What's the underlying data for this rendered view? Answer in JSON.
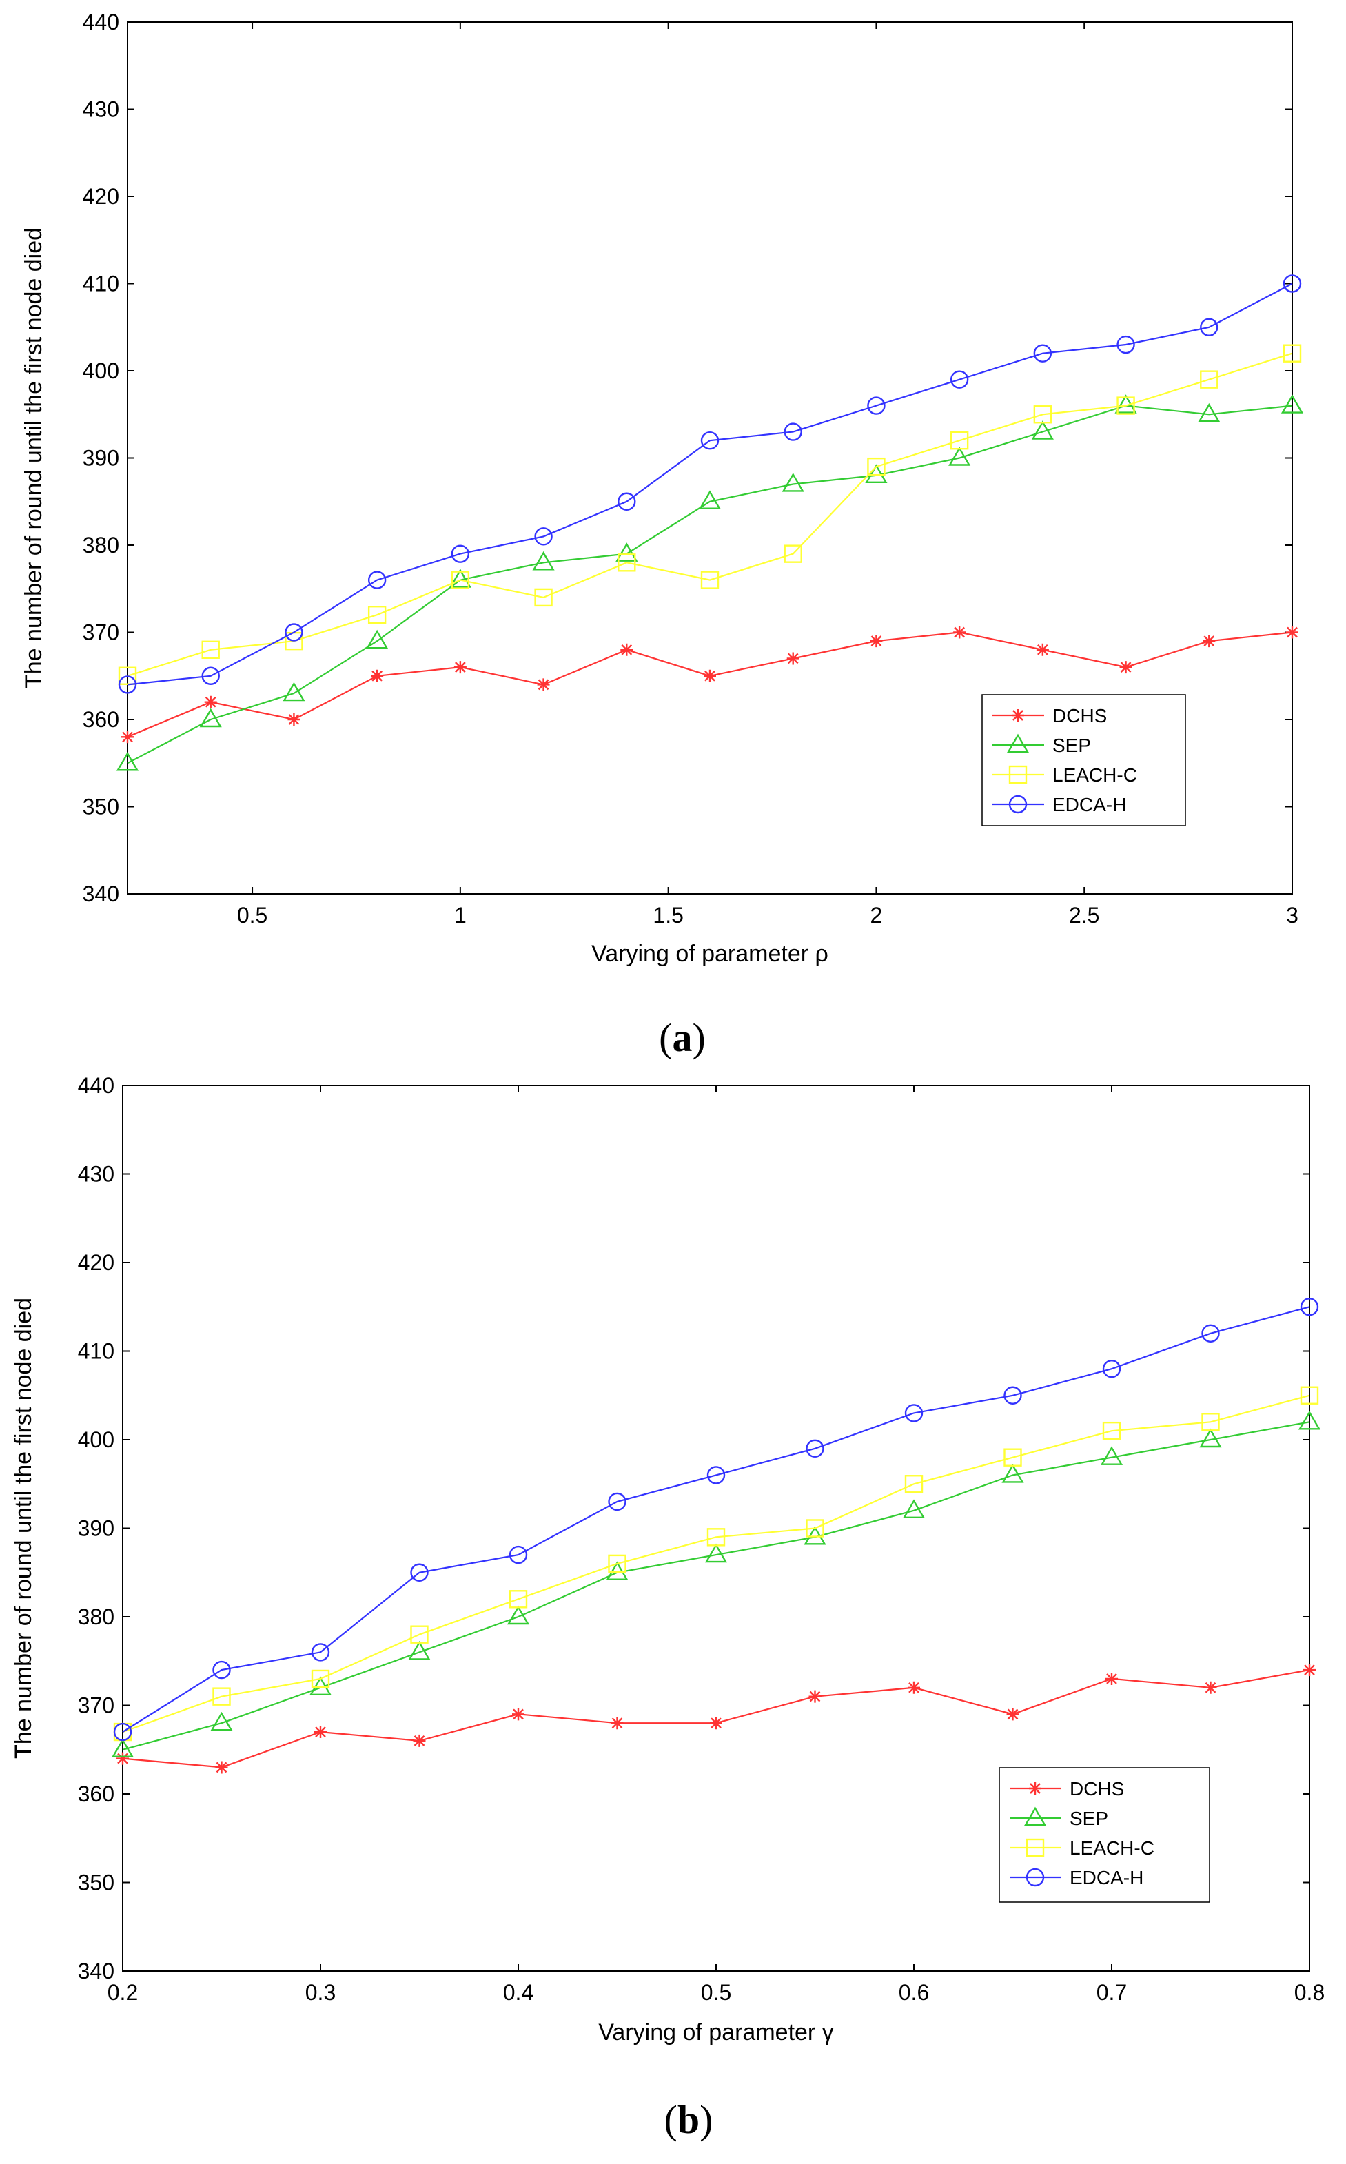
{
  "chart_data": [
    {
      "type": "line",
      "panel_label": "a",
      "xlabel": "Varying of parameter ρ",
      "ylabel": "The number of round until the first node died",
      "xlim": [
        0.2,
        3.0
      ],
      "ylim": [
        340,
        440
      ],
      "xticks": [
        0.5,
        1,
        1.5,
        2,
        2.5,
        3
      ],
      "yticks": [
        340,
        350,
        360,
        370,
        380,
        390,
        400,
        410,
        420,
        430,
        440
      ],
      "grid": false,
      "legend_position": "lower-right",
      "x": [
        0.2,
        0.4,
        0.6,
        0.8,
        1.0,
        1.2,
        1.4,
        1.6,
        1.8,
        2.0,
        2.2,
        2.4,
        2.6,
        2.8,
        3.0
      ],
      "series": [
        {
          "name": "DCHS",
          "color": "#ff3333",
          "marker": "star",
          "values": [
            358,
            362,
            360,
            365,
            366,
            364,
            368,
            365,
            367,
            369,
            370,
            368,
            366,
            369,
            370
          ]
        },
        {
          "name": "SEP",
          "color": "#33cc33",
          "marker": "triangle",
          "values": [
            355,
            360,
            363,
            369,
            376,
            378,
            379,
            385,
            387,
            388,
            390,
            393,
            396,
            395,
            396
          ]
        },
        {
          "name": "LEACH-C",
          "color": "#ffff33",
          "marker": "square",
          "values": [
            365,
            368,
            369,
            372,
            376,
            374,
            378,
            376,
            379,
            389,
            392,
            395,
            396,
            399,
            402
          ]
        },
        {
          "name": "EDCA-H",
          "color": "#3333ff",
          "marker": "circle",
          "values": [
            364,
            365,
            370,
            376,
            379,
            381,
            385,
            392,
            393,
            396,
            399,
            402,
            403,
            405,
            410
          ]
        }
      ]
    },
    {
      "type": "line",
      "panel_label": "b",
      "xlabel": "Varying of parameter γ",
      "ylabel": "The number of round until the first node died",
      "xlim": [
        0.2,
        0.8
      ],
      "ylim": [
        340,
        440
      ],
      "xticks": [
        0.2,
        0.3,
        0.4,
        0.5,
        0.6,
        0.7,
        0.8
      ],
      "yticks": [
        340,
        350,
        360,
        370,
        380,
        390,
        400,
        410,
        420,
        430,
        440
      ],
      "grid": false,
      "legend_position": "lower-right",
      "x": [
        0.2,
        0.25,
        0.3,
        0.35,
        0.4,
        0.45,
        0.5,
        0.55,
        0.6,
        0.65,
        0.7,
        0.75,
        0.8
      ],
      "series": [
        {
          "name": "DCHS",
          "color": "#ff3333",
          "marker": "star",
          "values": [
            364,
            363,
            367,
            366,
            369,
            368,
            368,
            371,
            372,
            369,
            373,
            372,
            374
          ]
        },
        {
          "name": "SEP",
          "color": "#33cc33",
          "marker": "triangle",
          "values": [
            365,
            368,
            372,
            376,
            380,
            385,
            387,
            389,
            392,
            396,
            398,
            400,
            402
          ]
        },
        {
          "name": "LEACH-C",
          "color": "#ffff33",
          "marker": "square",
          "values": [
            367,
            371,
            373,
            378,
            382,
            386,
            389,
            390,
            395,
            398,
            401,
            402,
            405
          ]
        },
        {
          "name": "EDCA-H",
          "color": "#3333ff",
          "marker": "circle",
          "values": [
            367,
            374,
            376,
            385,
            387,
            393,
            396,
            399,
            403,
            405,
            408,
            412,
            415
          ]
        }
      ]
    }
  ]
}
